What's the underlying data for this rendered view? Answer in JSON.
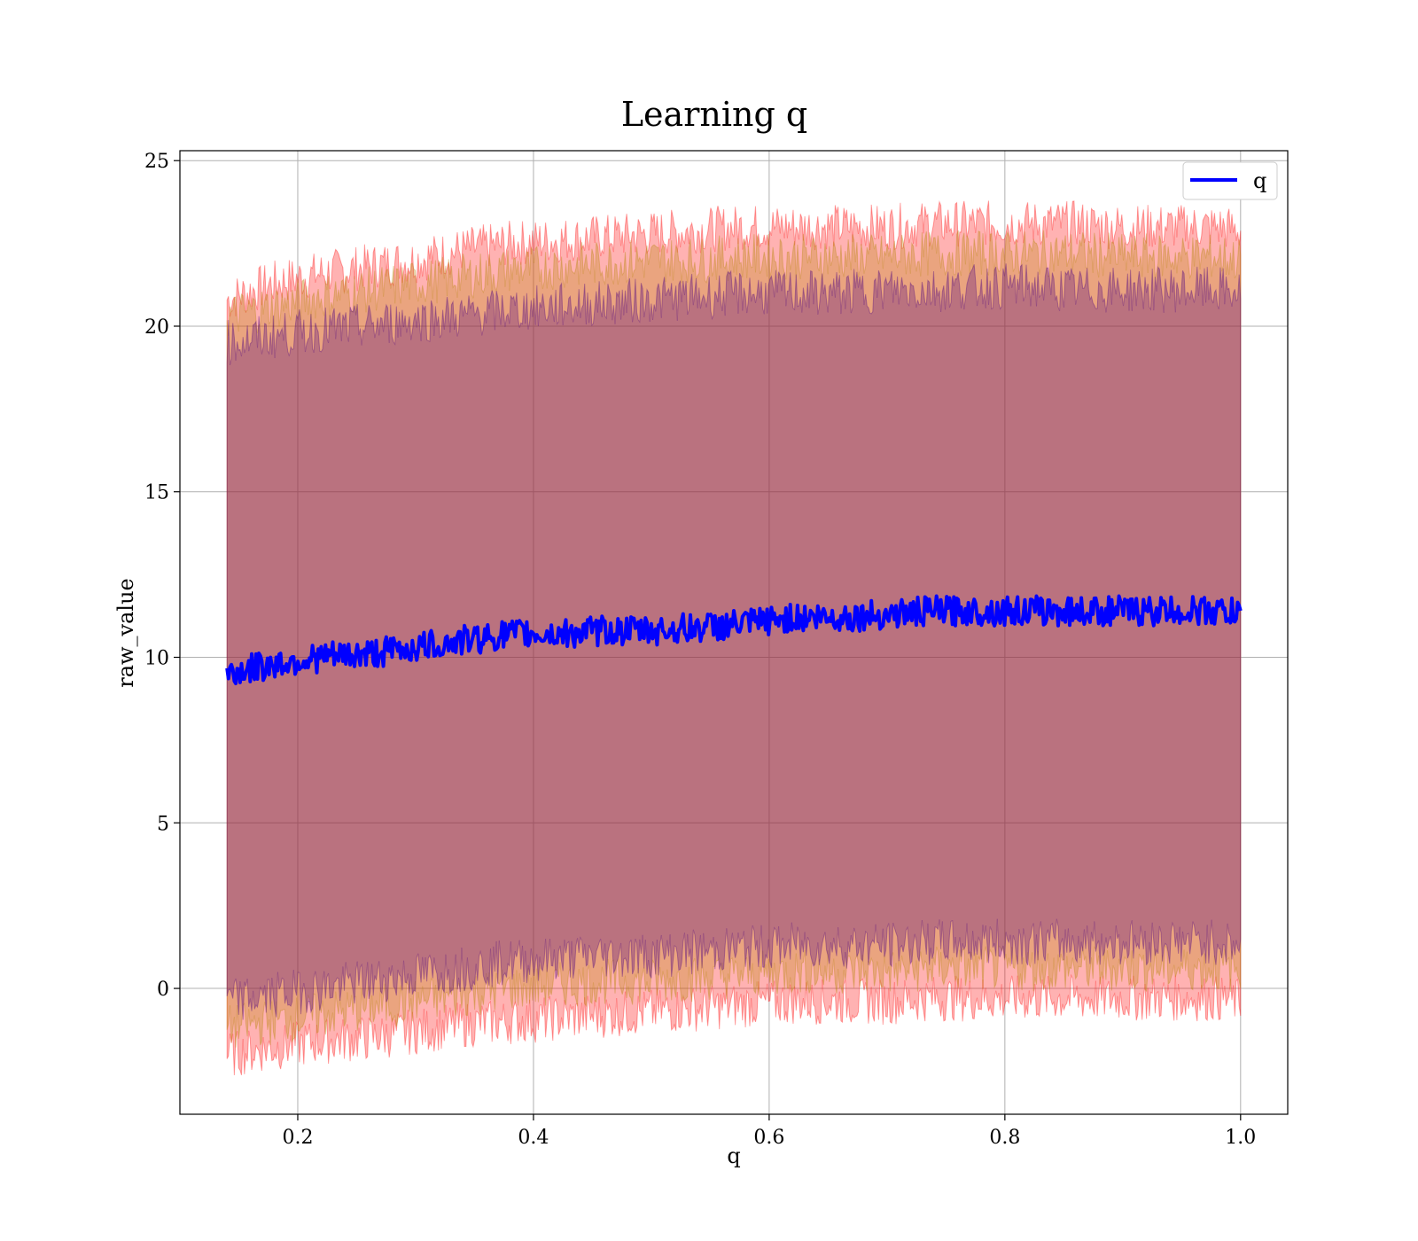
{
  "chart_data": {
    "type": "line",
    "title": "Learning q",
    "xlabel": "q",
    "ylabel": "raw_value",
    "xlim": [
      0.1,
      1.04
    ],
    "ylim": [
      -3.8,
      25.3
    ],
    "xticks": [
      0.2,
      0.4,
      0.6,
      0.8,
      1.0
    ],
    "xtick_labels": [
      "0.2",
      "0.4",
      "0.6",
      "0.8",
      "1.0"
    ],
    "yticks": [
      0,
      5,
      10,
      15,
      20,
      25
    ],
    "ytick_labels": [
      "0",
      "5",
      "10",
      "15",
      "20",
      "25"
    ],
    "grid": true,
    "legend": {
      "position": "top-right",
      "entries": [
        "q"
      ]
    },
    "series": [
      {
        "name": "q",
        "color": "#0000ff",
        "x": [
          0.14,
          0.18,
          0.22,
          0.26,
          0.3,
          0.34,
          0.38,
          0.42,
          0.46,
          0.5,
          0.54,
          0.58,
          0.62,
          0.66,
          0.7,
          0.74,
          0.78,
          0.82,
          0.86,
          0.9,
          0.94,
          0.98,
          1.0
        ],
        "values": [
          9.5,
          9.8,
          10.0,
          10.1,
          10.3,
          10.5,
          10.7,
          10.7,
          10.8,
          10.8,
          10.9,
          11.0,
          11.2,
          11.2,
          11.3,
          11.4,
          11.4,
          11.4,
          11.4,
          11.4,
          11.4,
          11.4,
          11.3
        ]
      }
    ],
    "bands": [
      {
        "color": "#ff0000",
        "x": [
          0.14,
          0.18,
          0.22,
          0.26,
          0.3,
          0.34,
          0.38,
          0.42,
          0.46,
          0.5,
          0.54,
          0.58,
          0.62,
          0.66,
          0.7,
          0.74,
          0.78,
          0.82,
          0.86,
          0.9,
          0.94,
          0.98,
          1.0
        ],
        "upper": [
          20.8,
          21.3,
          21.6,
          21.8,
          22.0,
          22.3,
          22.5,
          22.6,
          22.7,
          22.8,
          22.9,
          23.0,
          23.0,
          23.0,
          23.0,
          23.1,
          23.1,
          23.1,
          23.1,
          23.0,
          23.0,
          23.0,
          22.9
        ],
        "lower": [
          -2.0,
          -1.8,
          -1.6,
          -1.5,
          -1.3,
          -1.1,
          -1.0,
          -0.9,
          -0.8,
          -0.7,
          -0.6,
          -0.5,
          -0.4,
          -0.4,
          -0.4,
          -0.3,
          -0.3,
          -0.3,
          -0.3,
          -0.3,
          -0.3,
          -0.3,
          -0.4
        ]
      },
      {
        "color": "#b8860b",
        "x": [
          0.14,
          0.18,
          0.22,
          0.26,
          0.3,
          0.34,
          0.38,
          0.42,
          0.46,
          0.5,
          0.54,
          0.58,
          0.62,
          0.66,
          0.7,
          0.74,
          0.78,
          0.82,
          0.86,
          0.9,
          0.94,
          0.98,
          1.0
        ],
        "upper": [
          20.3,
          20.6,
          20.9,
          21.1,
          21.3,
          21.5,
          21.7,
          21.8,
          21.9,
          22.0,
          22.0,
          22.1,
          22.1,
          22.1,
          22.1,
          22.2,
          22.2,
          22.2,
          22.2,
          22.1,
          22.1,
          22.1,
          22.0
        ],
        "lower": [
          -1.2,
          -1.0,
          -0.8,
          -0.6,
          -0.4,
          -0.2,
          0.0,
          0.1,
          0.2,
          0.2,
          0.3,
          0.4,
          0.5,
          0.5,
          0.5,
          0.6,
          0.6,
          0.6,
          0.6,
          0.6,
          0.6,
          0.6,
          0.5
        ]
      },
      {
        "color": "#4b0082",
        "x": [
          0.14,
          0.18,
          0.22,
          0.26,
          0.3,
          0.34,
          0.38,
          0.42,
          0.46,
          0.5,
          0.54,
          0.58,
          0.62,
          0.66,
          0.7,
          0.74,
          0.78,
          0.82,
          0.86,
          0.9,
          0.94,
          0.98,
          1.0
        ],
        "upper": [
          19.5,
          19.7,
          19.9,
          20.0,
          20.2,
          20.3,
          20.5,
          20.6,
          20.7,
          20.8,
          20.9,
          21.0,
          21.0,
          21.0,
          21.1,
          21.1,
          21.2,
          21.2,
          21.1,
          21.1,
          21.1,
          21.1,
          21.0
        ],
        "lower": [
          -0.4,
          -0.2,
          0.0,
          0.2,
          0.4,
          0.6,
          0.8,
          0.9,
          1.0,
          1.0,
          1.1,
          1.2,
          1.3,
          1.3,
          1.3,
          1.4,
          1.4,
          1.4,
          1.4,
          1.4,
          1.4,
          1.4,
          1.3
        ]
      }
    ]
  }
}
